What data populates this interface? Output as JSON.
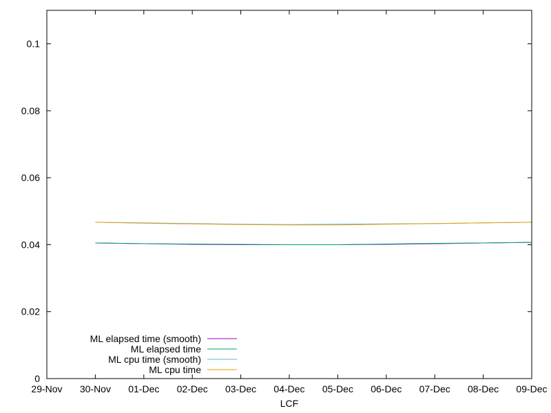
{
  "chart_data": {
    "type": "line",
    "xlabel": "LCF",
    "ylabel": "",
    "title": "",
    "xlim": [
      "2021-11-29",
      "2021-12-09"
    ],
    "ylim": [
      0,
      0.11
    ],
    "x_ticks": [
      "29-Nov",
      "30-Nov",
      "01-Dec",
      "02-Dec",
      "03-Dec",
      "04-Dec",
      "05-Dec",
      "06-Dec",
      "07-Dec",
      "08-Dec",
      "09-Dec"
    ],
    "y_ticks": [
      0,
      0.02,
      0.04,
      0.06,
      0.08,
      0.1
    ],
    "y_tick_labels": [
      "0",
      "0.02",
      "0.04",
      "0.06",
      "0.08",
      "0.1"
    ],
    "grid": false,
    "legend_position": "bottom-left",
    "series": [
      {
        "name": "ML elapsed time (smooth)",
        "color": "#9400d3",
        "x": [
          "2021-11-30",
          "2021-12-01",
          "2021-12-02",
          "2021-12-03",
          "2021-12-04",
          "2021-12-05",
          "2021-12-06",
          "2021-12-07",
          "2021-12-08",
          "2021-12-09"
        ],
        "values": [
          0.0405,
          0.0403,
          0.0401,
          0.04,
          0.04,
          0.04,
          0.0401,
          0.0403,
          0.0405,
          0.0407
        ]
      },
      {
        "name": "ML elapsed time",
        "color": "#009e73",
        "x": [
          "2021-11-30",
          "2021-12-01",
          "2021-12-02",
          "2021-12-03",
          "2021-12-04",
          "2021-12-05",
          "2021-12-06",
          "2021-12-07",
          "2021-12-08",
          "2021-12-09"
        ],
        "values": [
          0.0405,
          0.0403,
          0.0402,
          0.0401,
          0.04,
          0.04,
          0.0402,
          0.0404,
          0.0405,
          0.0407
        ]
      },
      {
        "name": "ML cpu time (smooth)",
        "color": "#56b4e9",
        "x": [
          "2021-11-30",
          "2021-12-01",
          "2021-12-02",
          "2021-12-03",
          "2021-12-04",
          "2021-12-05",
          "2021-12-06",
          "2021-12-07",
          "2021-12-08",
          "2021-12-09"
        ],
        "values": [
          0.0467,
          0.0465,
          0.0463,
          0.0461,
          0.046,
          0.0461,
          0.0462,
          0.0463,
          0.0465,
          0.0467
        ]
      },
      {
        "name": "ML cpu time",
        "color": "#e69f00",
        "x": [
          "2021-11-30",
          "2021-12-01",
          "2021-12-02",
          "2021-12-03",
          "2021-12-04",
          "2021-12-05",
          "2021-12-06",
          "2021-12-07",
          "2021-12-08",
          "2021-12-09"
        ],
        "values": [
          0.0467,
          0.0464,
          0.0462,
          0.046,
          0.0459,
          0.0459,
          0.0461,
          0.0463,
          0.0465,
          0.0467
        ]
      }
    ]
  }
}
